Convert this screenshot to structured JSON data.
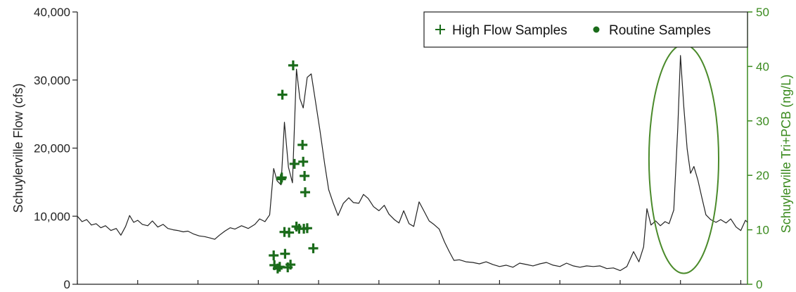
{
  "chart_data": {
    "type": "line",
    "y_left": {
      "label": "Schuylerville Flow (cfs)",
      "ylim": [
        0,
        40000
      ],
      "ticks": [
        "0",
        "10,000",
        "20,000",
        "30,000",
        "40,000"
      ]
    },
    "y_right": {
      "label": "Schuylerville Tri+PCB (ng/L)",
      "ylim": [
        0,
        50
      ],
      "ticks": [
        "0",
        "10",
        "20",
        "30",
        "40",
        "50"
      ]
    },
    "x": {
      "range": [
        0,
        100
      ],
      "ticks": [
        0,
        9,
        18,
        27,
        36,
        45,
        54,
        63,
        72,
        81,
        90,
        99
      ]
    },
    "legend": {
      "position": "top-right",
      "entries": [
        {
          "label": "High Flow Samples",
          "marker": "plus",
          "color": "#1a6b1a"
        },
        {
          "label": "Routine Samples",
          "marker": "dot",
          "color": "#1a6b1a"
        }
      ]
    },
    "colors": {
      "flow_line": "#222222",
      "samples": "#1a6b1a",
      "right_axis": "#3a8a1e",
      "ellipse": "#4a8a2a"
    },
    "series": [
      {
        "axis": "left",
        "style": "line",
        "points": [
          [
            0,
            10000
          ],
          [
            0.7,
            9200
          ],
          [
            1.4,
            9500
          ],
          [
            2.1,
            8700
          ],
          [
            2.8,
            8900
          ],
          [
            3.5,
            8300
          ],
          [
            4.2,
            8600
          ],
          [
            5,
            7900
          ],
          [
            5.8,
            8200
          ],
          [
            6.5,
            7200
          ],
          [
            7.2,
            8500
          ],
          [
            7.8,
            10100
          ],
          [
            8.4,
            9100
          ],
          [
            9,
            9400
          ],
          [
            9.7,
            8800
          ],
          [
            10.5,
            8600
          ],
          [
            11.2,
            9300
          ],
          [
            12,
            8400
          ],
          [
            12.8,
            8800
          ],
          [
            13.5,
            8200
          ],
          [
            14.3,
            8000
          ],
          [
            15,
            7900
          ],
          [
            15.8,
            7700
          ],
          [
            16.5,
            7800
          ],
          [
            17.3,
            7400
          ],
          [
            18.2,
            7100
          ],
          [
            19,
            7000
          ],
          [
            19.8,
            6800
          ],
          [
            20.5,
            6600
          ],
          [
            21.2,
            7200
          ],
          [
            22,
            7800
          ],
          [
            22.8,
            8300
          ],
          [
            23.5,
            8100
          ],
          [
            24.5,
            8600
          ],
          [
            25.5,
            8200
          ],
          [
            26.5,
            8800
          ],
          [
            27.2,
            9600
          ],
          [
            28,
            9200
          ],
          [
            28.7,
            10200
          ],
          [
            29.3,
            17000
          ],
          [
            29.8,
            15200
          ],
          [
            30.4,
            14600
          ],
          [
            30.9,
            23800
          ],
          [
            31.5,
            17200
          ],
          [
            32.1,
            14900
          ],
          [
            32.7,
            31600
          ],
          [
            33.2,
            27300
          ],
          [
            33.7,
            25900
          ],
          [
            34.3,
            30400
          ],
          [
            34.9,
            30900
          ],
          [
            35.5,
            27100
          ],
          [
            36.2,
            22600
          ],
          [
            36.9,
            17700
          ],
          [
            37.5,
            13900
          ],
          [
            38.2,
            11900
          ],
          [
            38.9,
            10100
          ],
          [
            39.7,
            11900
          ],
          [
            40.5,
            12700
          ],
          [
            41.2,
            12000
          ],
          [
            42,
            11900
          ],
          [
            42.7,
            13200
          ],
          [
            43.4,
            12600
          ],
          [
            44.2,
            11400
          ],
          [
            45,
            10800
          ],
          [
            45.8,
            11600
          ],
          [
            46.5,
            10300
          ],
          [
            47.3,
            9500
          ],
          [
            48,
            9000
          ],
          [
            48.7,
            10800
          ],
          [
            49.5,
            8900
          ],
          [
            50.2,
            8500
          ],
          [
            51,
            12100
          ],
          [
            51.8,
            10600
          ],
          [
            52.5,
            9300
          ],
          [
            53.2,
            8800
          ],
          [
            54,
            8100
          ],
          [
            54.8,
            6200
          ],
          [
            55.5,
            4800
          ],
          [
            56.2,
            3500
          ],
          [
            57,
            3600
          ],
          [
            58,
            3300
          ],
          [
            59,
            3200
          ],
          [
            60,
            3000
          ],
          [
            61,
            3300
          ],
          [
            62,
            2900
          ],
          [
            63,
            2600
          ],
          [
            64,
            2800
          ],
          [
            65,
            2500
          ],
          [
            66,
            3100
          ],
          [
            67,
            2900
          ],
          [
            68,
            2700
          ],
          [
            69,
            3000
          ],
          [
            70,
            3200
          ],
          [
            71,
            2800
          ],
          [
            72,
            2600
          ],
          [
            73,
            3100
          ],
          [
            74,
            2700
          ],
          [
            75,
            2500
          ],
          [
            76,
            2700
          ],
          [
            77,
            2600
          ],
          [
            78,
            2700
          ],
          [
            79,
            2300
          ],
          [
            80,
            2400
          ],
          [
            81,
            2000
          ],
          [
            82,
            2600
          ],
          [
            83,
            4800
          ],
          [
            83.8,
            3300
          ],
          [
            84.5,
            5500
          ],
          [
            85,
            11100
          ],
          [
            85.6,
            8700
          ],
          [
            86.3,
            9300
          ],
          [
            87,
            8600
          ],
          [
            87.7,
            9200
          ],
          [
            88.3,
            8900
          ],
          [
            89,
            10900
          ],
          [
            89.6,
            23000
          ],
          [
            90,
            33600
          ],
          [
            90.5,
            26000
          ],
          [
            91,
            19900
          ],
          [
            91.5,
            16300
          ],
          [
            92,
            17300
          ],
          [
            92.6,
            15300
          ],
          [
            93.2,
            12700
          ],
          [
            93.8,
            10200
          ],
          [
            94.5,
            9500
          ],
          [
            95.3,
            9100
          ],
          [
            96,
            9500
          ],
          [
            96.8,
            9000
          ],
          [
            97.5,
            9600
          ],
          [
            98.3,
            8400
          ],
          [
            99,
            7900
          ],
          [
            99.7,
            9400
          ],
          [
            100,
            9100
          ]
        ]
      },
      {
        "name": "High Flow Samples",
        "axis": "right",
        "style": "plus",
        "points": [
          [
            29.3,
            5.3
          ],
          [
            29.4,
            3.5
          ],
          [
            29.9,
            2.9
          ],
          [
            30.2,
            3.2
          ],
          [
            30.4,
            19.3
          ],
          [
            30.5,
            19.6
          ],
          [
            30.6,
            34.8
          ],
          [
            30.9,
            9.6
          ],
          [
            31,
            5.6
          ],
          [
            31.4,
            3.1
          ],
          [
            31.6,
            9.5
          ],
          [
            31.8,
            3.6
          ],
          [
            32.2,
            40.2
          ],
          [
            32.4,
            22.1
          ],
          [
            32.7,
            10.6
          ],
          [
            33.1,
            10.2
          ],
          [
            33.6,
            25.6
          ],
          [
            33.7,
            22.5
          ],
          [
            33.8,
            10.2
          ],
          [
            33.9,
            19.9
          ],
          [
            34,
            16.9
          ],
          [
            34.3,
            10.3
          ],
          [
            35.2,
            6.6
          ]
        ]
      }
    ],
    "annotations": [
      {
        "type": "ellipse",
        "center": [
          90.5,
          23
        ],
        "radii": [
          5.2,
          21
        ]
      }
    ]
  }
}
